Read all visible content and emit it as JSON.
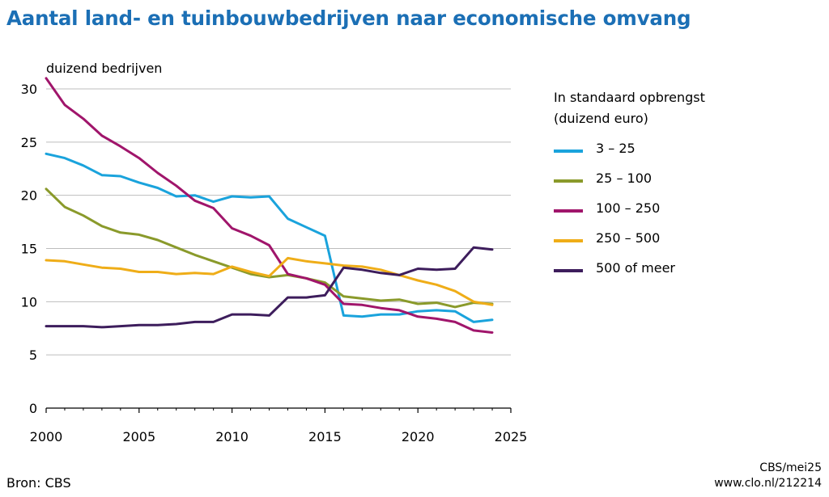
{
  "title": "Aantal land- en tuinbouwbedrijven naar economische omvang",
  "source": "Bron: CBS",
  "credit": [
    "CBS/mei25",
    "www.clo.nl/212214"
  ],
  "legend_title": [
    "In standaard opbrengst",
    "(duizend euro)"
  ],
  "chart_data": {
    "type": "line",
    "ylabel": "duizend bedrijven",
    "xlabel": "",
    "xlim": [
      2000,
      2025
    ],
    "ylim": [
      0,
      30
    ],
    "xticks": [
      2000,
      2005,
      2010,
      2015,
      2020,
      2025
    ],
    "yticks": [
      0,
      5,
      10,
      15,
      20,
      25,
      30
    ],
    "grid": "horizontal",
    "legend_position": "right",
    "x": [
      2000,
      2001,
      2002,
      2003,
      2004,
      2005,
      2006,
      2007,
      2008,
      2009,
      2010,
      2011,
      2012,
      2013,
      2014,
      2015,
      2016,
      2017,
      2018,
      2019,
      2020,
      2021,
      2022,
      2023,
      2024
    ],
    "series": [
      {
        "name": "3 – 25",
        "color": "#1aa3dc",
        "values": [
          23.9,
          23.5,
          22.8,
          21.9,
          21.8,
          21.2,
          20.7,
          19.9,
          20.0,
          19.4,
          19.9,
          19.8,
          19.9,
          17.8,
          17.0,
          16.2,
          8.7,
          8.6,
          8.8,
          8.8,
          9.1,
          9.2,
          9.1,
          8.1,
          8.3
        ]
      },
      {
        "name": "25 – 100",
        "color": "#8a9a2b",
        "values": [
          20.6,
          18.9,
          18.1,
          17.1,
          16.5,
          16.3,
          15.8,
          15.1,
          14.4,
          13.8,
          13.2,
          12.6,
          12.3,
          12.5,
          12.2,
          11.8,
          10.5,
          10.3,
          10.1,
          10.2,
          9.8,
          9.9,
          9.5,
          9.9,
          9.8
        ]
      },
      {
        "name": "100 – 250",
        "color": "#a0156b",
        "values": [
          31.0,
          28.5,
          27.2,
          25.6,
          24.6,
          23.5,
          22.1,
          20.9,
          19.5,
          18.8,
          16.9,
          16.2,
          15.3,
          12.6,
          12.2,
          11.6,
          9.8,
          9.7,
          9.4,
          9.2,
          8.6,
          8.4,
          8.1,
          7.3,
          7.1
        ]
      },
      {
        "name": "250 – 500",
        "color": "#efad18",
        "values": [
          13.9,
          13.8,
          13.5,
          13.2,
          13.1,
          12.8,
          12.8,
          12.6,
          12.7,
          12.6,
          13.3,
          12.8,
          12.4,
          14.1,
          13.8,
          13.6,
          13.4,
          13.3,
          13.0,
          12.5,
          12.0,
          11.6,
          11.0,
          10.0,
          9.7
        ]
      },
      {
        "name": "500 of meer",
        "color": "#3d1d5c",
        "values": [
          7.7,
          7.7,
          7.7,
          7.6,
          7.7,
          7.8,
          7.8,
          7.9,
          8.1,
          8.1,
          8.8,
          8.8,
          8.7,
          10.4,
          10.4,
          10.6,
          13.2,
          13.0,
          12.7,
          12.5,
          13.1,
          13.0,
          13.1,
          15.1,
          14.9
        ]
      }
    ]
  }
}
